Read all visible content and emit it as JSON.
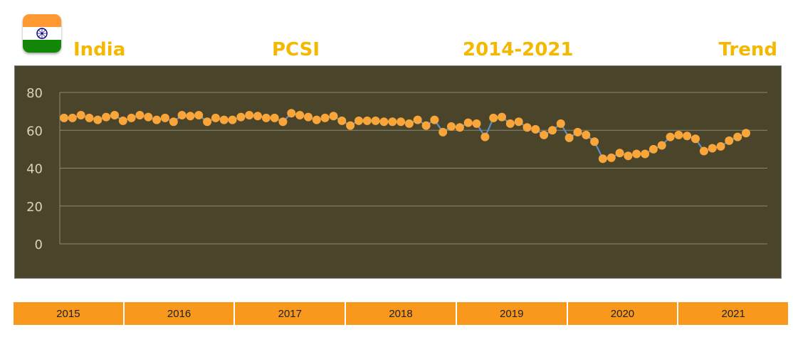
{
  "header": {
    "words": [
      "India",
      "PCSI",
      "2014-2021",
      "Trend"
    ]
  },
  "flag_icon": "india-flag-icon",
  "colors": {
    "title": "#F5B800",
    "plot_bg": "#4A442A",
    "grid": "#8C8870",
    "tick_text": "#D8D3B8",
    "line": "#5B8FC7",
    "marker": "#F9A53A",
    "year_bar": "#F8981D",
    "flag_saffron": "#FF9933",
    "flag_white": "#FFFFFF",
    "flag_green": "#138808",
    "chakra": "#000080"
  },
  "chart_data": {
    "type": "line",
    "title": "",
    "xlabel": "",
    "ylabel": "",
    "ylim": [
      0,
      80
    ],
    "yticks": [
      0,
      20,
      40,
      60,
      80
    ],
    "grid": true,
    "series": [
      {
        "values": [
          66.5,
          66.5,
          68,
          66.5,
          65.5,
          67,
          68,
          65,
          66.5,
          68,
          67,
          65.5,
          66.5,
          64.5,
          68,
          67.5,
          68,
          64.5,
          66.5,
          65.5,
          65.5,
          67,
          68,
          67.5,
          66.5,
          66.5,
          64.5,
          69,
          68,
          67,
          65.5,
          66.5,
          67.5,
          65,
          62.5,
          65,
          65,
          65,
          64.5,
          64.5,
          64.5,
          63.5,
          65.5,
          62.5,
          65.5,
          59,
          62,
          61.5,
          64,
          63.5,
          56.5,
          66.5,
          67,
          63.5,
          64.5,
          61.5,
          60.5,
          57.5,
          60,
          63.5,
          56,
          59,
          57.5,
          54,
          45,
          45.5,
          48,
          46.5,
          47.5,
          47.5,
          50,
          52,
          56.5,
          57.5,
          57,
          55.5,
          49,
          50.5,
          51.5,
          54.5,
          56.5,
          58.5
        ]
      }
    ],
    "year_labels": [
      "2015",
      "2016",
      "2017",
      "2018",
      "2019",
      "2020",
      "2021"
    ]
  }
}
